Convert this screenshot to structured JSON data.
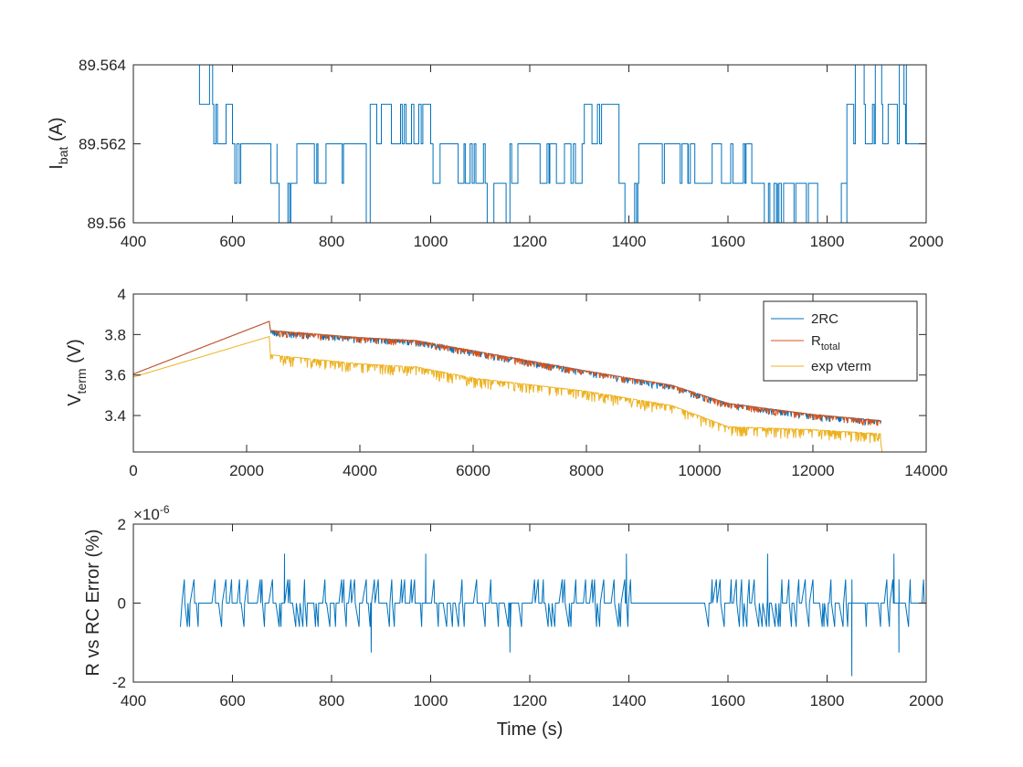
{
  "colors": {
    "series1": "#0072BD",
    "series2": "#D95319",
    "series3": "#EDB120",
    "axis": "#262626"
  },
  "chart_data": [
    {
      "type": "line",
      "ylabel_main": "I",
      "ylabel_sub": "bat",
      "ylabel_unit": " (A)",
      "xlim": [
        400,
        2000
      ],
      "ylim": [
        89.56,
        89.564
      ],
      "xticks": [
        "400",
        "600",
        "800",
        "1000",
        "1200",
        "1400",
        "1600",
        "1800",
        "2000"
      ],
      "yticks": [
        "89.56",
        "89.562",
        "89.564"
      ],
      "series": [
        {
          "levels": [
            89.56,
            89.561,
            89.562,
            89.563,
            89.564
          ],
          "segments": [
            {
              "x0": 495,
              "x1": 560,
              "base": 89.564,
              "noise": [
                89.563,
                89.564
              ],
              "seed": 1
            },
            {
              "x0": 560,
              "x1": 600,
              "base": 89.563,
              "noise": [
                89.562,
                89.563
              ],
              "seed": 2
            },
            {
              "x0": 600,
              "x1": 690,
              "base": 89.562,
              "noise": [
                89.561,
                89.562
              ],
              "seed": 3
            },
            {
              "x0": 690,
              "x1": 730,
              "base": 89.561,
              "noise": [
                89.56,
                89.561
              ],
              "seed": 4
            },
            {
              "x0": 730,
              "x1": 870,
              "base": 89.562,
              "noise": [
                89.561,
                89.562
              ],
              "seed": 5
            },
            {
              "x0": 870,
              "x1": 878,
              "base": 89.56,
              "noise": [
                89.56,
                89.56
              ],
              "seed": 6
            },
            {
              "x0": 878,
              "x1": 1000,
              "base": 89.563,
              "noise": [
                89.562,
                89.563
              ],
              "seed": 7
            },
            {
              "x0": 1000,
              "x1": 1110,
              "base": 89.562,
              "noise": [
                89.561,
                89.562
              ],
              "seed": 8
            },
            {
              "x0": 1110,
              "x1": 1160,
              "base": 89.561,
              "noise": [
                89.56,
                89.561
              ],
              "seed": 9
            },
            {
              "x0": 1160,
              "x1": 1310,
              "base": 89.562,
              "noise": [
                89.561,
                89.562
              ],
              "seed": 10
            },
            {
              "x0": 1310,
              "x1": 1380,
              "base": 89.563,
              "noise": [
                89.562,
                89.563
              ],
              "seed": 11
            },
            {
              "x0": 1380,
              "x1": 1420,
              "base": 89.561,
              "noise": [
                89.56,
                89.561
              ],
              "seed": 12
            },
            {
              "x0": 1420,
              "x1": 1520,
              "base": 89.562,
              "noise": [
                89.561,
                89.562
              ],
              "seed": 13
            },
            {
              "x0": 1520,
              "x1": 1670,
              "base": 89.561,
              "noise": [
                89.562,
                89.561
              ],
              "seed": 14
            },
            {
              "x0": 1670,
              "x1": 1700,
              "base": 89.561,
              "noise": [
                89.56,
                89.561
              ],
              "seed": 15
            },
            {
              "x0": 1700,
              "x1": 1840,
              "base": 89.56,
              "noise": [
                89.561,
                89.56
              ],
              "seed": 16
            },
            {
              "x0": 1840,
              "x1": 1960,
              "base": 89.563,
              "noise": [
                89.562,
                89.564
              ],
              "seed": 17
            },
            {
              "x0": 1960,
              "x1": 2000,
              "base": 89.562,
              "noise": [
                89.561,
                89.562
              ],
              "seed": 18
            }
          ]
        }
      ]
    },
    {
      "type": "line",
      "ylabel_main": "V",
      "ylabel_sub": "term",
      "ylabel_unit": " (V)",
      "xlim": [
        0,
        14000
      ],
      "ylim": [
        3.22,
        4.0
      ],
      "xticks": [
        "0",
        "2000",
        "4000",
        "6000",
        "8000",
        "10000",
        "12000",
        "14000"
      ],
      "yticks": [
        "3.4",
        "3.6",
        "3.8",
        "4"
      ],
      "legend_position": "top-right",
      "series": [
        {
          "name": "2RC",
          "knots": [
            [
              0,
              3.605
            ],
            [
              2400,
              3.865
            ],
            [
              2420,
              3.82
            ],
            [
              4000,
              3.785
            ],
            [
              5000,
              3.77
            ],
            [
              6000,
              3.72
            ],
            [
              8000,
              3.62
            ],
            [
              9500,
              3.55
            ],
            [
              10500,
              3.46
            ],
            [
              12000,
              3.405
            ],
            [
              13200,
              3.375
            ]
          ],
          "noise_start": 2420,
          "noise_amp": 0.03
        },
        {
          "name": "R",
          "name_sub": "total",
          "knots": [
            [
              0,
              3.605
            ],
            [
              2400,
              3.865
            ],
            [
              2420,
              3.82
            ],
            [
              4000,
              3.785
            ],
            [
              5000,
              3.77
            ],
            [
              6000,
              3.72
            ],
            [
              8000,
              3.62
            ],
            [
              9500,
              3.55
            ],
            [
              10500,
              3.46
            ],
            [
              12000,
              3.405
            ],
            [
              13200,
              3.375
            ]
          ],
          "noise_start": 2420,
          "noise_amp": 0.03
        },
        {
          "name": "exp vterm",
          "knots": [
            [
              0,
              3.59
            ],
            [
              2400,
              3.79
            ],
            [
              2420,
              3.7
            ],
            [
              4000,
              3.655
            ],
            [
              5000,
              3.64
            ],
            [
              6000,
              3.585
            ],
            [
              8000,
              3.52
            ],
            [
              9500,
              3.45
            ],
            [
              10500,
              3.345
            ],
            [
              12000,
              3.33
            ],
            [
              13200,
              3.31
            ],
            [
              13220,
              3.22
            ]
          ],
          "noise_start": 2420,
          "noise_amp": 0.05
        }
      ]
    },
    {
      "type": "line",
      "ylabel": "R vs RC Error (%)",
      "xlabel": "Time (s)",
      "exponent_label": "×10",
      "exponent_power": "-6",
      "xlim": [
        400,
        2000
      ],
      "ylim": [
        -2,
        2
      ],
      "xticks": [
        "400",
        "600",
        "800",
        "1000",
        "1200",
        "1400",
        "1600",
        "1800",
        "2000"
      ],
      "yticks": [
        "-2",
        "0",
        "2"
      ],
      "series": [
        {
          "x_start": 495,
          "x_end": 2000,
          "spike_values": [
            0.6,
            -0.6,
            1.2,
            -1.2
          ],
          "large_spikes": [
            [
              705,
              1.25
            ],
            [
              880,
              -1.25
            ],
            [
              990,
              1.25
            ],
            [
              1160,
              -1.25
            ],
            [
              1395,
              1.25
            ],
            [
              1680,
              1.25
            ],
            [
              1850,
              -1.85
            ],
            [
              1935,
              1.25
            ],
            [
              1945,
              -1.25
            ]
          ],
          "quiet_intervals": [
            [
              1440,
              1520
            ]
          ]
        }
      ]
    }
  ]
}
